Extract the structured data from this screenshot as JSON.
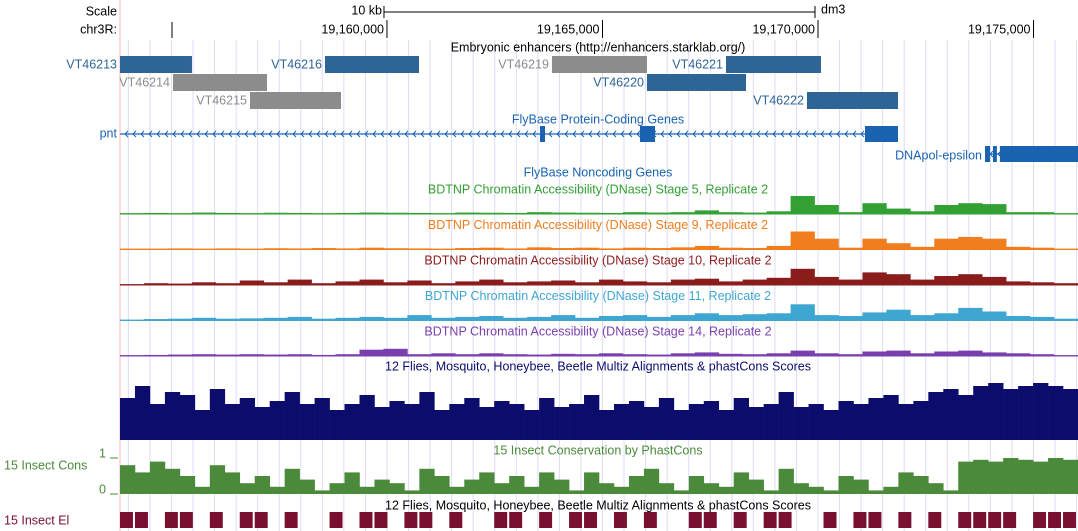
{
  "chart_data": {
    "type": "genome-browser",
    "scale_label": "Scale",
    "scale_bar": {
      "value": 10000,
      "label": "10 kb"
    },
    "assembly": "dm3",
    "chrom": "chr3R:",
    "xlim": [
      19153806,
      19176032
    ],
    "xticks": [
      {
        "value": 19160000,
        "label": "19,160,000"
      },
      {
        "value": 19165000,
        "label": "19,165,000"
      },
      {
        "value": 19170000,
        "label": "19,170,000"
      },
      {
        "value": 19175000,
        "label": "19,175,000"
      }
    ],
    "enhancers": {
      "title": "Embryonic enhancers (http://enhancers.starklab.org/)",
      "items": [
        {
          "name": "VT46213",
          "start": 19153806,
          "end": 19155476,
          "color": "#2f6496"
        },
        {
          "name": "VT46214",
          "start": 19155036,
          "end": 19157216,
          "color": "#8c8c8c"
        },
        {
          "name": "VT46215",
          "start": 19156822,
          "end": 19158933,
          "color": "#8c8c8c"
        },
        {
          "name": "VT46216",
          "start": 19158562,
          "end": 19160743,
          "color": "#2f6496"
        },
        {
          "name": "VT46219",
          "start": 19163828,
          "end": 19166032,
          "color": "#8c8c8c"
        },
        {
          "name": "VT46220",
          "start": 19166032,
          "end": 19168329,
          "color": "#2f6496"
        },
        {
          "name": "VT46221",
          "start": 19167865,
          "end": 19170069,
          "color": "#2f6496"
        },
        {
          "name": "VT46222",
          "start": 19169744,
          "end": 19171856,
          "color": "#2f6496"
        }
      ]
    },
    "genes": {
      "title": "FlyBase Protein-Coding Genes",
      "color": "#1a63b0",
      "items": [
        {
          "name": "pnt",
          "start": 19153806,
          "end": 19171856,
          "strand": "-",
          "exons": [
            [
              19163550,
              19163666
            ],
            [
              19165870,
              19166218
            ],
            [
              19171090,
              19171856
            ]
          ]
        },
        {
          "name": "DNApol-epsilon",
          "start": 19173874,
          "end": 19176032,
          "strand": "-",
          "exons": [
            [
              19173874,
              19173990
            ],
            [
              19174060,
              19174150
            ],
            [
              19174220,
              19176032
            ]
          ]
        }
      ]
    },
    "noncoding_title": "FlyBase Noncoding Genes",
    "dnase": [
      {
        "name": "BDTNP Chromatin Accessibility (DNase) Stage 5, Replicate 2",
        "color": "#33a033",
        "values": [
          0.05,
          0.06,
          0.05,
          0.08,
          0.06,
          0.05,
          0.07,
          0.06,
          0.05,
          0.06,
          0.08,
          0.07,
          0.06,
          0.05,
          0.08,
          0.07,
          0.06,
          0.1,
          0.08,
          0.07,
          0.06,
          0.1,
          0.08,
          0.1,
          0.2,
          0.1,
          0.08,
          0.15,
          1.0,
          0.5,
          0.1,
          0.6,
          0.3,
          0.15,
          0.5,
          0.6,
          0.55,
          0.1,
          0.1,
          0.05
        ]
      },
      {
        "name": "BDTNP Chromatin Accessibility (DNase) Stage 9, Replicate 2",
        "color": "#f07d1e",
        "values": [
          0.05,
          0.05,
          0.06,
          0.05,
          0.06,
          0.05,
          0.07,
          0.06,
          0.08,
          0.06,
          0.1,
          0.07,
          0.06,
          0.05,
          0.08,
          0.1,
          0.06,
          0.12,
          0.08,
          0.1,
          0.06,
          0.1,
          0.08,
          0.12,
          0.2,
          0.1,
          0.08,
          0.2,
          1.0,
          0.6,
          0.1,
          0.6,
          0.35,
          0.15,
          0.6,
          0.7,
          0.6,
          0.15,
          0.1,
          0.05
        ]
      },
      {
        "name": "BDTNP Chromatin Accessibility (DNase) Stage 10, Replicate 2",
        "color": "#8b1c1c",
        "values": [
          0.05,
          0.1,
          0.08,
          0.15,
          0.1,
          0.25,
          0.15,
          0.3,
          0.1,
          0.2,
          0.3,
          0.15,
          0.25,
          0.1,
          0.2,
          0.3,
          0.15,
          0.2,
          0.25,
          0.15,
          0.3,
          0.2,
          0.15,
          0.3,
          0.35,
          0.2,
          0.3,
          0.4,
          0.9,
          0.45,
          0.3,
          0.7,
          0.6,
          0.3,
          0.5,
          0.6,
          0.45,
          0.2,
          0.15,
          0.1
        ]
      },
      {
        "name": "BDTNP Chromatin Accessibility (DNase) Stage 11, Replicate 2",
        "color": "#3fa6d2",
        "values": [
          0.05,
          0.08,
          0.1,
          0.15,
          0.1,
          0.12,
          0.15,
          0.2,
          0.1,
          0.15,
          0.2,
          0.15,
          0.3,
          0.15,
          0.2,
          0.25,
          0.15,
          0.2,
          0.3,
          0.15,
          0.25,
          0.3,
          0.2,
          0.3,
          0.4,
          0.3,
          0.35,
          0.4,
          0.9,
          0.3,
          0.25,
          0.45,
          0.6,
          0.3,
          0.4,
          0.7,
          0.5,
          0.25,
          0.2,
          0.1
        ]
      },
      {
        "name": "BDTNP Chromatin Accessibility (DNase) Stage 14, Replicate 2",
        "color": "#7a3fae",
        "values": [
          0.05,
          0.06,
          0.08,
          0.1,
          0.08,
          0.1,
          0.08,
          0.1,
          0.06,
          0.1,
          0.35,
          0.4,
          0.1,
          0.15,
          0.1,
          0.15,
          0.1,
          0.08,
          0.12,
          0.1,
          0.15,
          0.1,
          0.08,
          0.15,
          0.2,
          0.12,
          0.1,
          0.15,
          0.3,
          0.15,
          0.1,
          0.25,
          0.3,
          0.15,
          0.25,
          0.3,
          0.2,
          0.15,
          0.1,
          0.05
        ]
      }
    ],
    "multiz": {
      "name": "12 Flies, Mosquito, Honeybee, Beetle Multiz Alignments & phastCons Scores",
      "color": "#0c0c6c",
      "values": [
        0.7,
        0.9,
        0.6,
        0.8,
        0.75,
        0.5,
        0.85,
        0.6,
        0.7,
        0.55,
        0.65,
        0.8,
        0.6,
        0.7,
        0.5,
        0.6,
        0.75,
        0.55,
        0.65,
        0.6,
        0.8,
        0.5,
        0.6,
        0.7,
        0.55,
        0.65,
        0.6,
        0.5,
        0.7,
        0.55,
        0.6,
        0.75,
        0.5,
        0.6,
        0.65,
        0.55,
        0.7,
        0.5,
        0.6,
        0.65,
        0.5,
        0.7,
        0.55,
        0.6,
        0.8,
        0.55,
        0.6,
        0.5,
        0.65,
        0.6,
        0.7,
        0.75,
        0.6,
        0.65,
        0.8,
        0.85,
        0.75,
        0.9,
        0.95,
        0.85,
        0.9,
        0.95,
        0.9,
        0.85
      ]
    },
    "phastcons": {
      "name": "15 Insect Conservation by PhastCons",
      "label": "15 Insect Cons",
      "color": "#4a8a3a",
      "ylim": [
        0,
        1
      ],
      "yticks": [
        0,
        1
      ],
      "values": [
        0.8,
        0.6,
        0.9,
        0.7,
        0.5,
        0.2,
        0.8,
        0.6,
        0.3,
        0.5,
        0.2,
        0.7,
        0.4,
        0.1,
        0.3,
        0.6,
        0.2,
        0.4,
        0.3,
        0.1,
        0.7,
        0.5,
        0.2,
        0.4,
        0.6,
        0.3,
        0.5,
        0.2,
        0.6,
        0.4,
        0.1,
        0.6,
        0.3,
        0.2,
        0.5,
        0.7,
        0.3,
        0.1,
        0.5,
        0.3,
        0.2,
        0.6,
        0.4,
        0.1,
        0.7,
        0.3,
        0.2,
        0.1,
        0.5,
        0.4,
        0.1,
        0.2,
        0.6,
        0.5,
        0.3,
        0.1,
        0.9,
        0.95,
        0.9,
        1.0,
        0.95,
        0.9,
        1.0,
        0.95
      ]
    },
    "elements": {
      "name": "12 Flies, Mosquito, Honeybee, Beetle Multiz Alignments & phastCons Scores",
      "label": "15 Insect El",
      "color": "#7a1030",
      "values": [
        1,
        1,
        0,
        1,
        1,
        0,
        1,
        0,
        1,
        1,
        0,
        1,
        0,
        0,
        1,
        0,
        1,
        1,
        0,
        1,
        1,
        0,
        1,
        0,
        0,
        1,
        1,
        0,
        1,
        0,
        1,
        1,
        0,
        1,
        0,
        1,
        0,
        0,
        1,
        1,
        0,
        1,
        0,
        1,
        1,
        0,
        0,
        1,
        0,
        1,
        1,
        0,
        1,
        0,
        1,
        0,
        1,
        1,
        1,
        1,
        0,
        1,
        1,
        1
      ]
    }
  }
}
